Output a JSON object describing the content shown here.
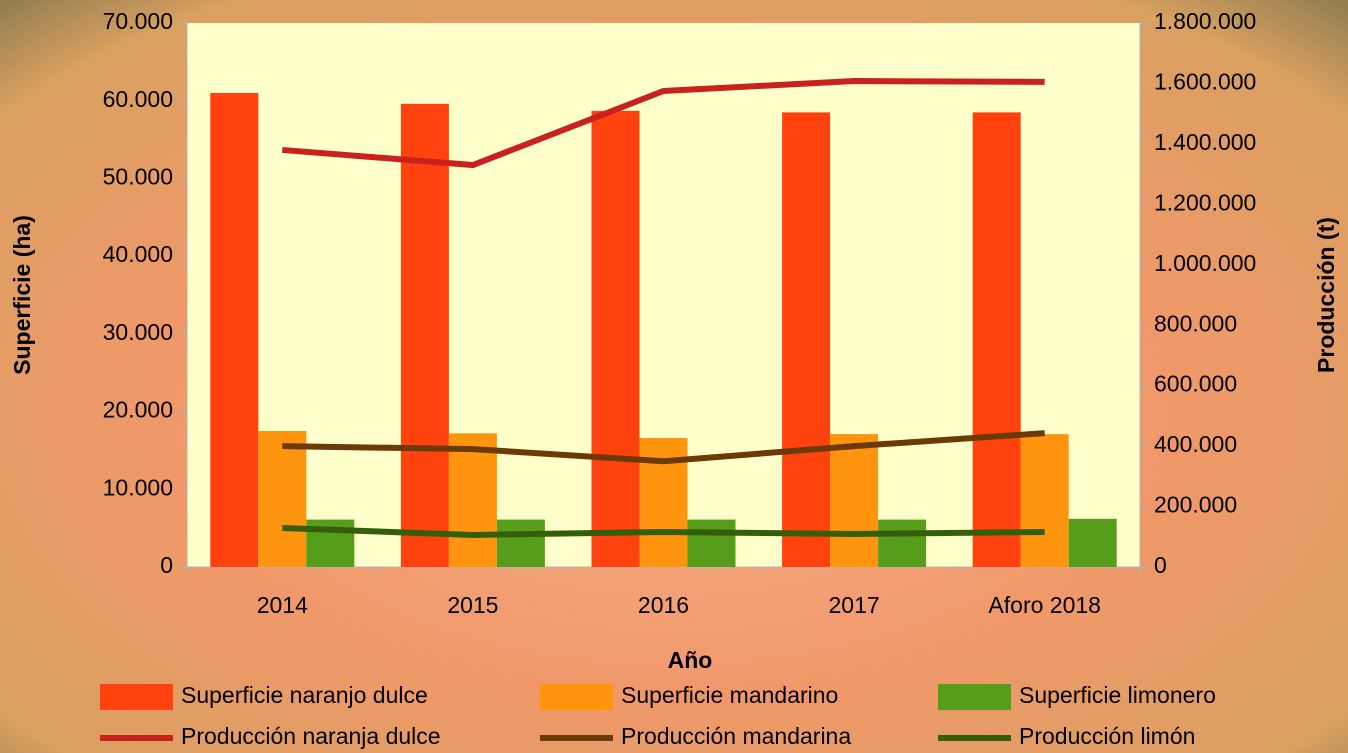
{
  "chart_data": {
    "type": "bar",
    "x_label": "Año",
    "y_label": "Superficie (ha)",
    "y2_label": "Producción (t)",
    "categories": [
      "2014",
      "2015",
      "2016",
      "2017",
      "Aforo 2018"
    ],
    "ylim": [
      0,
      70000
    ],
    "yticks": [
      {
        "value": 0,
        "label": "0"
      },
      {
        "value": 10000,
        "label": "10.000"
      },
      {
        "value": 20000,
        "label": "20.000"
      },
      {
        "value": 30000,
        "label": "30.000"
      },
      {
        "value": 40000,
        "label": "40.000"
      },
      {
        "value": 50000,
        "label": "50.000"
      },
      {
        "value": 60000,
        "label": "60.000"
      },
      {
        "value": 70000,
        "label": "70.000"
      }
    ],
    "y2lim": [
      0,
      1800000
    ],
    "y2ticks": [
      {
        "value": 0,
        "label": "0"
      },
      {
        "value": 200000,
        "label": "200.000"
      },
      {
        "value": 400000,
        "label": "400.000"
      },
      {
        "value": 600000,
        "label": "600.000"
      },
      {
        "value": 800000,
        "label": "800.000"
      },
      {
        "value": 1000000,
        "label": "1.000.000"
      },
      {
        "value": 1200000,
        "label": "1.200.000"
      },
      {
        "value": 1400000,
        "label": "1.400.000"
      },
      {
        "value": 1600000,
        "label": "1.600.000"
      },
      {
        "value": 1800000,
        "label": "1.800.000"
      }
    ],
    "grid": false,
    "legend": "bottom",
    "series": [
      {
        "name": "Superficie naranjo dulce",
        "type": "bar",
        "color": "#ff420e",
        "values": [
          61000,
          59600,
          58700,
          58500,
          58500
        ]
      },
      {
        "name": "Superficie mandarino",
        "type": "bar",
        "color": "#ff950e",
        "values": [
          17500,
          17200,
          16600,
          17100,
          17100
        ]
      },
      {
        "name": "Superficie limonero",
        "type": "bar",
        "color": "#579d1c",
        "values": [
          6100,
          6100,
          6100,
          6100,
          6200
        ]
      },
      {
        "name": "Producción naranja dulce",
        "type": "line",
        "axis": "y2",
        "color": "#c9211e",
        "values": [
          1380000,
          1330000,
          1575000,
          1608000,
          1605000
        ]
      },
      {
        "name": "Producción mandarina",
        "type": "line",
        "axis": "y2",
        "color": "#6b3a07",
        "values": [
          400000,
          390000,
          350000,
          400000,
          443000
        ]
      },
      {
        "name": "Producción limón",
        "type": "line",
        "axis": "y2",
        "color": "#355e0b",
        "values": [
          129000,
          106000,
          116000,
          109000,
          116000
        ]
      }
    ]
  }
}
